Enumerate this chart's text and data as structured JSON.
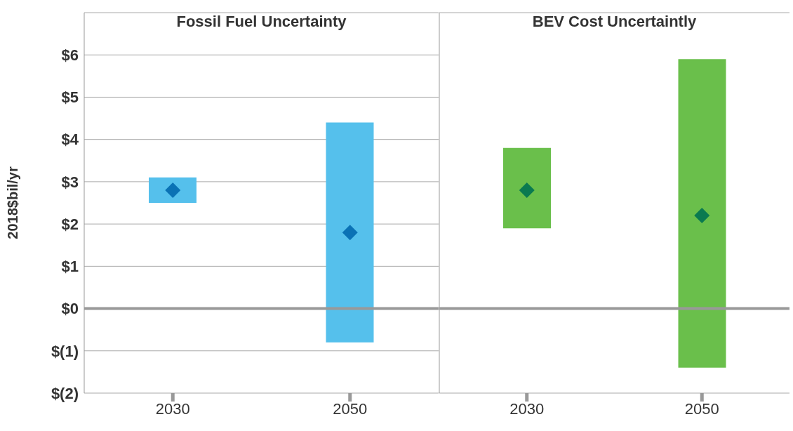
{
  "chart_data": [
    {
      "type": "bar",
      "title": "Fossil Fuel Uncertainty",
      "ylabel": "2018$bil/yr",
      "categories": [
        "2030",
        "2050"
      ],
      "series": [
        {
          "color": "#55c0ec",
          "base": [
            2.5,
            -0.8
          ],
          "values": [
            0.6,
            5.2
          ]
        },
        {
          "type": "scatter",
          "color": "#0b72b5",
          "marker": "diamond",
          "values": [
            2.8,
            1.8
          ]
        }
      ],
      "ylim": [
        -2,
        7
      ],
      "yticks": [
        {
          "value": -2,
          "label": "$(2)"
        },
        {
          "value": -1,
          "label": "$(1)"
        },
        {
          "value": 0,
          "label": "$0"
        },
        {
          "value": 1,
          "label": "$1"
        },
        {
          "value": 2,
          "label": "$2"
        },
        {
          "value": 3,
          "label": "$3"
        },
        {
          "value": 4,
          "label": "$4"
        },
        {
          "value": 5,
          "label": "$5"
        },
        {
          "value": 6,
          "label": "$6"
        }
      ],
      "grid": "y",
      "ref_lines": [
        {
          "axis": "y",
          "value": 0,
          "color": "#999999"
        }
      ]
    },
    {
      "type": "bar",
      "title": "BEV Cost Uncertaintly",
      "categories": [
        "2030",
        "2050"
      ],
      "series": [
        {
          "color": "#6abf4b",
          "base": [
            1.9,
            -1.4
          ],
          "values": [
            1.9,
            7.3
          ]
        },
        {
          "type": "scatter",
          "color": "#0a7a50",
          "marker": "diamond",
          "values": [
            2.8,
            2.2
          ]
        }
      ],
      "ylim": [
        -2,
        7
      ],
      "yticks": [
        {
          "value": -2,
          "label": null
        },
        {
          "value": -1,
          "label": null
        },
        {
          "value": 0,
          "label": null
        },
        {
          "value": 1,
          "label": null
        },
        {
          "value": 2,
          "label": null
        },
        {
          "value": 3,
          "label": null
        },
        {
          "value": 4,
          "label": null
        },
        {
          "value": 5,
          "label": null
        },
        {
          "value": 6,
          "label": null
        }
      ],
      "grid": "y",
      "ref_lines": [
        {
          "axis": "y",
          "value": 0,
          "color": "#999999"
        }
      ],
      "tick_labels": "x"
    }
  ]
}
